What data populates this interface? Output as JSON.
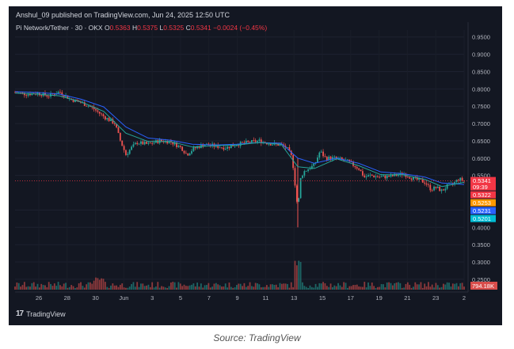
{
  "header": {
    "published_line": "Anshul_09 published on TradingView.com, Jun 24, 2025 12:50 UTC"
  },
  "legend": {
    "symbol": "Pi Network/Tether · 30 · OKX",
    "open_label": "O",
    "open": "0.5363",
    "high_label": "H",
    "high": "0.5375",
    "low_label": "L",
    "low": "0.5325",
    "close_label": "C",
    "close": "0.5341",
    "change": "−0.0024 (−0.45%)"
  },
  "footer": {
    "brand": "TradingView",
    "source": "Source: TradingView"
  },
  "colors": {
    "background": "#131722",
    "up": "#26a69a",
    "down": "#ef5350",
    "ma_fast": "#26a69a",
    "ma_slow": "#2962ff",
    "current_line": "#f23645"
  },
  "chart_data": {
    "type": "candlestick",
    "title": "Pi Network/Tether · 30 · OKX",
    "y_axis_ticks": [
      "0.9500",
      "0.9000",
      "0.8500",
      "0.8000",
      "0.7500",
      "0.7000",
      "0.6500",
      "0.6000",
      "0.5500",
      "0.4500",
      "0.4000",
      "0.3500",
      "0.3000",
      "0.2500"
    ],
    "ylim": [
      0.22,
      0.97
    ],
    "x_axis_ticks": [
      "26",
      "28",
      "30",
      "Jun",
      "3",
      "5",
      "7",
      "9",
      "11",
      "13",
      "15",
      "17",
      "19",
      "21",
      "23",
      "2"
    ],
    "price_tags": [
      {
        "value": "0.5341",
        "sub": "09:39",
        "color": "#f23645"
      },
      {
        "value": "0.5322",
        "color": "#f23645"
      },
      {
        "value": "0.5253",
        "color": "#ff9800"
      },
      {
        "value": "0.5231",
        "color": "#2962ff"
      },
      {
        "value": "0.5201",
        "color": "#00bcd4"
      }
    ],
    "volume_label": "794.18K",
    "price_path": [
      [
        0,
        0.79
      ],
      [
        2,
        0.785
      ],
      [
        4,
        0.788
      ],
      [
        6,
        0.78
      ],
      [
        8,
        0.792
      ],
      [
        10,
        0.77
      ],
      [
        12,
        0.76
      ],
      [
        14,
        0.745
      ],
      [
        16,
        0.72
      ],
      [
        18,
        0.7
      ],
      [
        19,
        0.65
      ],
      [
        20,
        0.61
      ],
      [
        21,
        0.63
      ],
      [
        22,
        0.645
      ],
      [
        24,
        0.64
      ],
      [
        26,
        0.65
      ],
      [
        28,
        0.648
      ],
      [
        30,
        0.63
      ],
      [
        31,
        0.61
      ],
      [
        32,
        0.625
      ],
      [
        34,
        0.64
      ],
      [
        36,
        0.635
      ],
      [
        38,
        0.63
      ],
      [
        40,
        0.64
      ],
      [
        42,
        0.645
      ],
      [
        44,
        0.65
      ],
      [
        46,
        0.642
      ],
      [
        48,
        0.638
      ],
      [
        49,
        0.63
      ],
      [
        50,
        0.6
      ],
      [
        51,
        0.45
      ],
      [
        51.5,
        0.54
      ],
      [
        52,
        0.56
      ],
      [
        54,
        0.58
      ],
      [
        55,
        0.62
      ],
      [
        56,
        0.6
      ],
      [
        58,
        0.6
      ],
      [
        60,
        0.59
      ],
      [
        62,
        0.57
      ],
      [
        63,
        0.545
      ],
      [
        64,
        0.55
      ],
      [
        66,
        0.545
      ],
      [
        68,
        0.548
      ],
      [
        70,
        0.555
      ],
      [
        72,
        0.54
      ],
      [
        74,
        0.53
      ],
      [
        75,
        0.51
      ],
      [
        76,
        0.515
      ],
      [
        77,
        0.505
      ],
      [
        78,
        0.52
      ],
      [
        79,
        0.525
      ],
      [
        80,
        0.54
      ],
      [
        81,
        0.534
      ]
    ],
    "ma_fast_path": [
      [
        0,
        0.788
      ],
      [
        4,
        0.785
      ],
      [
        8,
        0.78
      ],
      [
        12,
        0.762
      ],
      [
        16,
        0.735
      ],
      [
        20,
        0.672
      ],
      [
        24,
        0.648
      ],
      [
        28,
        0.648
      ],
      [
        32,
        0.632
      ],
      [
        36,
        0.636
      ],
      [
        40,
        0.638
      ],
      [
        44,
        0.645
      ],
      [
        48,
        0.64
      ],
      [
        51,
        0.575
      ],
      [
        54,
        0.57
      ],
      [
        58,
        0.598
      ],
      [
        62,
        0.578
      ],
      [
        66,
        0.552
      ],
      [
        70,
        0.552
      ],
      [
        74,
        0.538
      ],
      [
        77,
        0.518
      ],
      [
        80,
        0.527
      ],
      [
        81,
        0.53
      ]
    ],
    "ma_slow_path": [
      [
        0,
        0.792
      ],
      [
        4,
        0.79
      ],
      [
        8,
        0.785
      ],
      [
        12,
        0.77
      ],
      [
        16,
        0.748
      ],
      [
        20,
        0.69
      ],
      [
        24,
        0.658
      ],
      [
        28,
        0.652
      ],
      [
        32,
        0.64
      ],
      [
        36,
        0.638
      ],
      [
        40,
        0.64
      ],
      [
        44,
        0.645
      ],
      [
        48,
        0.643
      ],
      [
        51,
        0.6
      ],
      [
        54,
        0.585
      ],
      [
        58,
        0.6
      ],
      [
        62,
        0.585
      ],
      [
        66,
        0.56
      ],
      [
        70,
        0.555
      ],
      [
        74,
        0.545
      ],
      [
        77,
        0.528
      ],
      [
        80,
        0.525
      ],
      [
        81,
        0.524
      ]
    ]
  }
}
